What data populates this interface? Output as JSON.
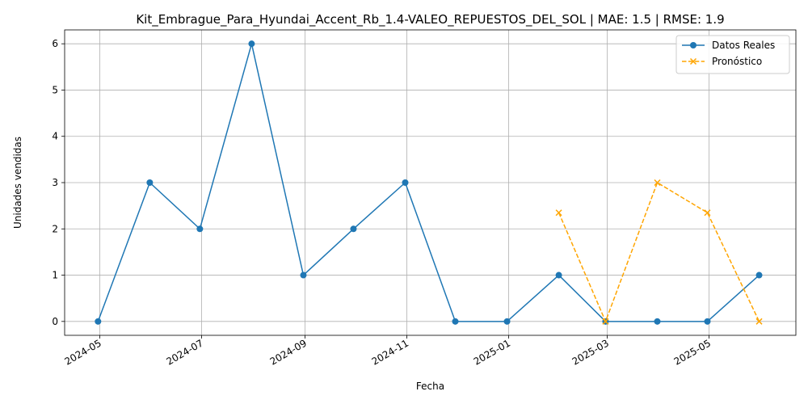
{
  "chart_data": {
    "type": "line",
    "title": "Kit_Embrague_Para_Hyundai_Accent_Rb_1.4-VALEO_REPUESTOS_DEL_SOL | MAE: 1.5 | RMSE: 1.9",
    "xlabel": "Fecha",
    "ylabel": "Unidades vendidas",
    "xlim": [
      "2024-04-10",
      "2025-06-22"
    ],
    "ylim": [
      -0.3,
      6.3
    ],
    "x_ticks": [
      "2024-05",
      "2024-07",
      "2024-09",
      "2024-11",
      "2025-01",
      "2025-03",
      "2025-05"
    ],
    "y_ticks": [
      0,
      1,
      2,
      3,
      4,
      5,
      6
    ],
    "grid": true,
    "legend_position": "upper right",
    "series": [
      {
        "name": "Datos Reales",
        "color": "#1f77b4",
        "style": "solid",
        "marker": "circle",
        "x": [
          "2024-04-30",
          "2024-05-31",
          "2024-06-30",
          "2024-07-31",
          "2024-08-31",
          "2024-09-30",
          "2024-10-31",
          "2024-11-30",
          "2024-12-31",
          "2025-01-31",
          "2025-02-28",
          "2025-03-31",
          "2025-04-30",
          "2025-05-31"
        ],
        "y": [
          0,
          3,
          2,
          6,
          1,
          2,
          3,
          0,
          0,
          1,
          0,
          0,
          0,
          1
        ]
      },
      {
        "name": "Pronóstico",
        "color": "#ffa500",
        "style": "dashed",
        "marker": "x",
        "x": [
          "2025-01-31",
          "2025-02-28",
          "2025-03-31",
          "2025-04-30",
          "2025-05-31"
        ],
        "y": [
          2.35,
          0,
          3,
          2.35,
          0
        ]
      }
    ]
  }
}
